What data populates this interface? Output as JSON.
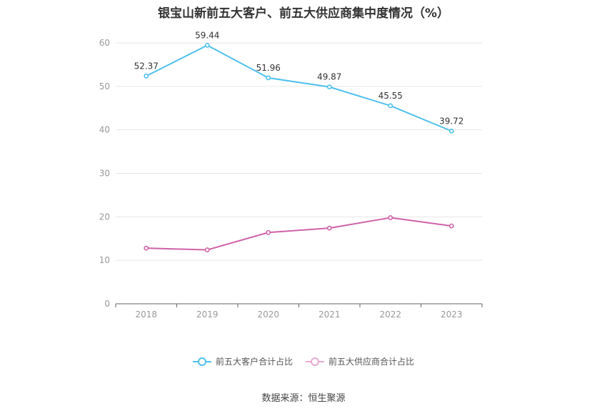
{
  "title": "银宝山新前五大客户、前五大供应商集中度情况（%）",
  "source": "数据来源：恒生聚源",
  "colors": {
    "series1": "#4fc0ec",
    "series2": "#cf62a8",
    "grid": "#e6e6e6",
    "axis": "#666666",
    "tick_text": "#999999",
    "label_text": "#333333"
  },
  "chart_data": {
    "type": "line",
    "x": [
      "2018",
      "2019",
      "2020",
      "2021",
      "2022",
      "2023"
    ],
    "ylim": [
      0,
      60
    ],
    "yticks": [
      0,
      10,
      20,
      30,
      40,
      50,
      60
    ],
    "grid": true,
    "legend_position": "bottom",
    "series": [
      {
        "name": "前五大客户合计占比",
        "values": [
          52.37,
          59.44,
          51.96,
          49.87,
          45.55,
          39.72
        ],
        "labels": [
          "52.37",
          "59.44",
          "51.96",
          "49.87",
          "45.55",
          "39.72"
        ],
        "color": "#4fc0ec"
      },
      {
        "name": "前五大供应商合计占比",
        "values": [
          12.8,
          12.4,
          16.4,
          17.4,
          19.8,
          17.9
        ],
        "labels": [],
        "color": "#cf62a8"
      }
    ]
  }
}
